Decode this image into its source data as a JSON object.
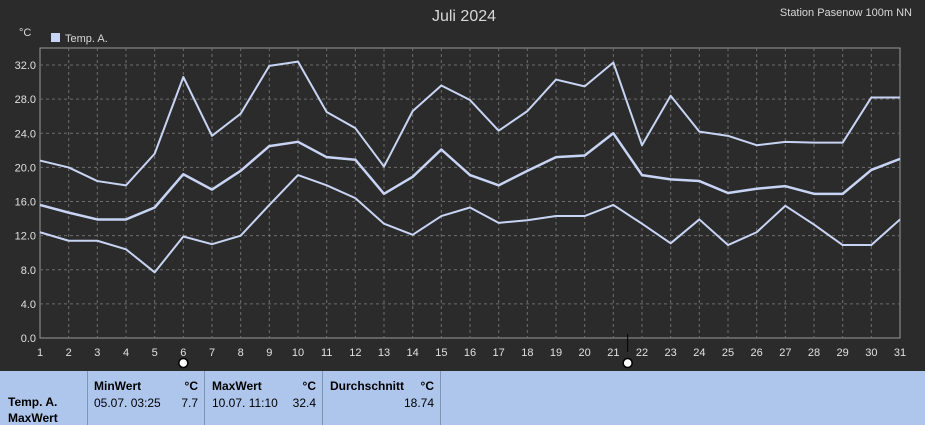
{
  "chart_data": {
    "type": "line",
    "title": "Juli 2024",
    "station": "Station Pasenow 100m NN",
    "ylabel": "°C",
    "legend": {
      "label": "Temp. A.",
      "color": "#c8d4f4",
      "placement": "top-left"
    },
    "ylim": [
      0,
      34
    ],
    "yticks": [
      "0.0",
      "4.0",
      "8.0",
      "12.0",
      "16.0",
      "20.0",
      "24.0",
      "28.0",
      "32.0"
    ],
    "x": [
      1,
      2,
      3,
      4,
      5,
      6,
      7,
      8,
      9,
      10,
      11,
      12,
      13,
      14,
      15,
      16,
      17,
      18,
      19,
      20,
      21,
      22,
      23,
      24,
      25,
      26,
      27,
      28,
      29,
      30,
      31
    ],
    "grid": true,
    "line_color": "#c8d4f4",
    "series": [
      {
        "values": [
          20.8,
          20.0,
          18.4,
          17.9,
          21.6,
          30.6,
          23.7,
          26.3,
          31.9,
          32.4,
          26.5,
          24.6,
          20.1,
          26.6,
          29.6,
          27.9,
          24.3,
          26.6,
          30.3,
          29.5,
          32.3,
          22.6,
          28.4,
          24.2,
          23.7,
          22.6,
          23.0,
          22.9,
          22.9,
          28.2,
          28.2
        ]
      },
      {
        "values": [
          15.6,
          14.7,
          13.9,
          13.9,
          15.3,
          19.2,
          17.4,
          19.6,
          22.5,
          23.0,
          21.2,
          20.9,
          16.9,
          18.9,
          22.1,
          19.1,
          17.9,
          19.6,
          21.2,
          21.4,
          24.0,
          19.1,
          18.6,
          18.4,
          17.0,
          17.5,
          17.8,
          16.9,
          16.9,
          19.7,
          21.0
        ]
      },
      {
        "values": [
          12.4,
          11.4,
          11.4,
          10.4,
          7.7,
          11.9,
          11.0,
          12.0,
          15.6,
          19.1,
          17.9,
          16.4,
          13.4,
          12.1,
          14.3,
          15.3,
          13.5,
          13.8,
          14.3,
          14.3,
          15.6,
          13.4,
          11.1,
          13.9,
          10.9,
          12.4,
          15.5,
          13.3,
          10.9,
          10.9,
          13.9
        ]
      }
    ],
    "markers": [
      6,
      21.5
    ]
  },
  "stats": {
    "series_label": "Temp. A.",
    "row_label": "MaxWert",
    "min": {
      "header": "MinWert",
      "unit": "°C",
      "time": "05.07.  03:25",
      "value": "7.7"
    },
    "max": {
      "header": "MaxWert",
      "unit": "°C",
      "time": "10.07.  11:10",
      "value": "32.4"
    },
    "avg": {
      "header": "Durchschnitt",
      "unit": "°C",
      "value": "18.74"
    }
  }
}
